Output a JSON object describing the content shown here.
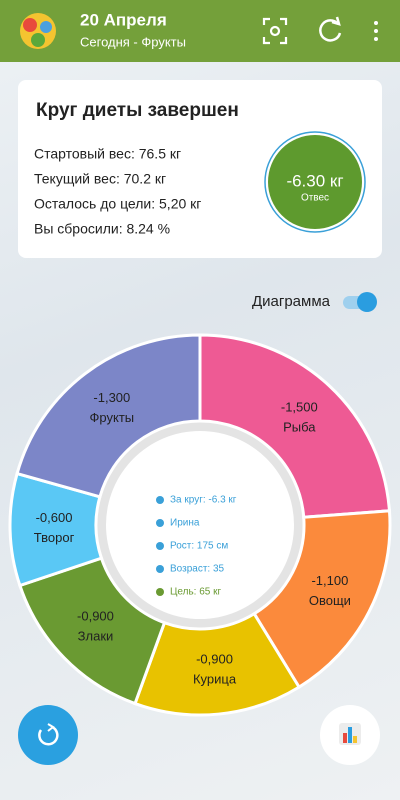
{
  "header": {
    "title": "20 Апреля",
    "subtitle": "Сегодня - Фрукты"
  },
  "summary": {
    "title": "Круг диеты завершен",
    "lines": [
      "Стартовый вес: 76.5 кг",
      "Текущий вес: 70.2 кг",
      "Осталось до цели: 5,20 кг",
      "Вы сбросили: 8.24 %"
    ],
    "badge": {
      "value": "-6.30 кг",
      "caption": "Отвес"
    }
  },
  "toggle": {
    "label": "Диаграмма"
  },
  "chart_data": {
    "type": "donut",
    "categories": [
      "Рыба",
      "Овощи",
      "Курица",
      "Злаки",
      "Творог",
      "Фрукты"
    ],
    "values": [
      -1.5,
      -1.1,
      -0.9,
      -0.9,
      -0.6,
      -1.3
    ],
    "value_labels": [
      "-1,500",
      "-1,100",
      "-0,900",
      "-0,900",
      "-0,600",
      "-1,300"
    ],
    "colors": [
      "#ee5a94",
      "#fb8a3c",
      "#e8c200",
      "#6a9a32",
      "#5ac8f5",
      "#7c86c8"
    ]
  },
  "center_info": [
    {
      "text": "За круг: -6.3 кг",
      "color": "#3aa0d8"
    },
    {
      "text": "Ирина",
      "color": "#3aa0d8"
    },
    {
      "text": "Рост: 175 см",
      "color": "#3aa0d8"
    },
    {
      "text": "Возраст: 35",
      "color": "#3aa0d8"
    },
    {
      "text": "Цель: 65 кг",
      "color": "#6a9a32"
    }
  ]
}
